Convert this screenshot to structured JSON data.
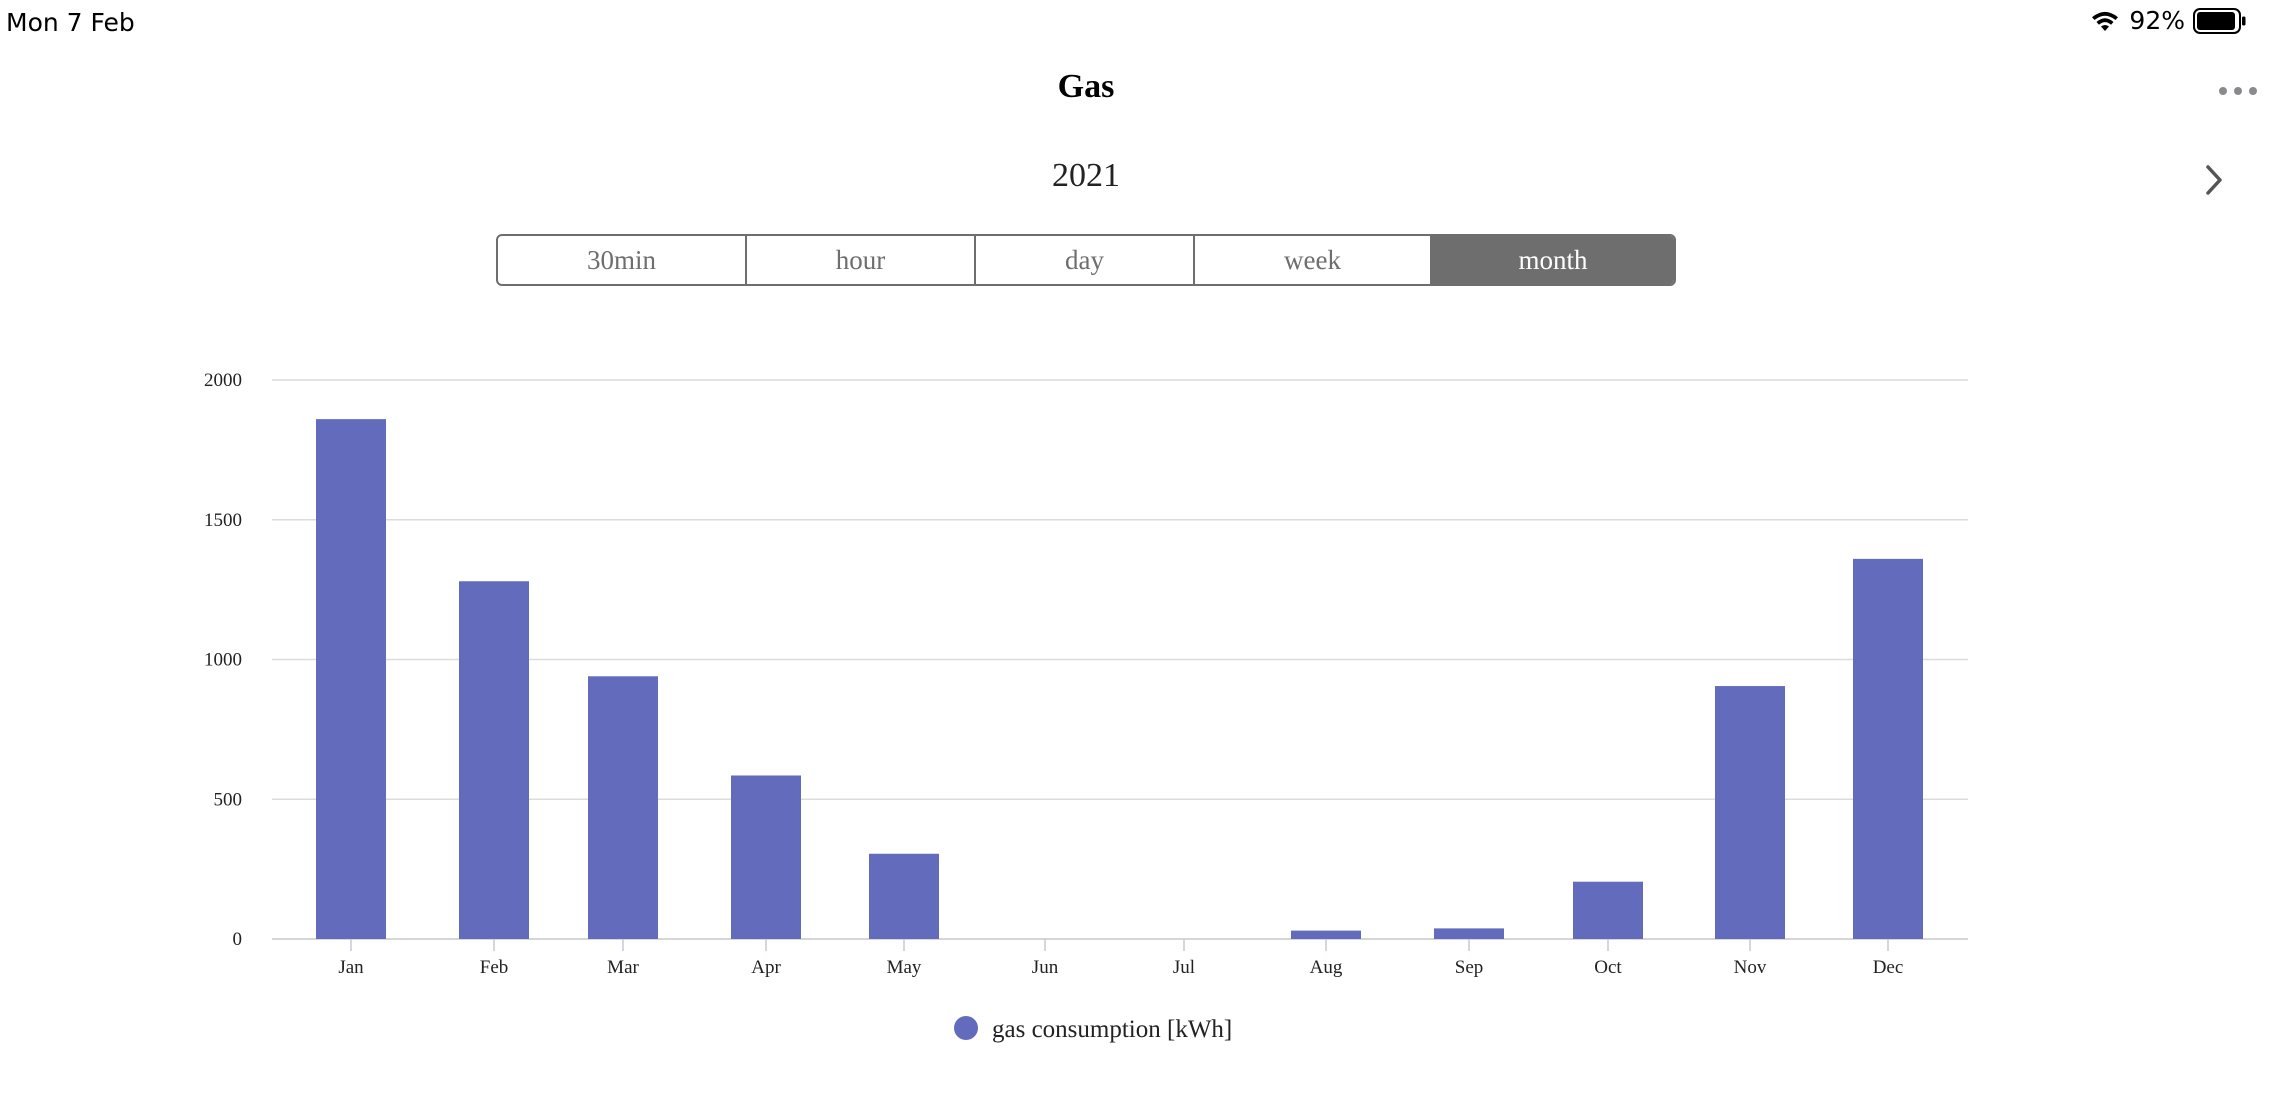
{
  "status_bar": {
    "time": "Mon 7 Feb",
    "battery": "92%"
  },
  "icons": {
    "wifi": "wifi-icon",
    "battery": "battery-icon",
    "more": "ellipsis-icon",
    "next": "chevron-right-icon"
  },
  "header": {
    "title": "Gas",
    "year": "2021"
  },
  "segments": [
    {
      "label": "30min",
      "active": false
    },
    {
      "label": "hour",
      "active": false
    },
    {
      "label": "day",
      "active": false
    },
    {
      "label": "week",
      "active": false
    },
    {
      "label": "month",
      "active": true
    }
  ],
  "colors": {
    "bar": "#636cbc",
    "segment_active": "#6e6e6e",
    "grid": "#dcdcdc"
  },
  "chart_data": {
    "type": "bar",
    "categories": [
      "Jan",
      "Feb",
      "Mar",
      "Apr",
      "May",
      "Jun",
      "Jul",
      "Aug",
      "Sep",
      "Oct",
      "Nov",
      "Dec"
    ],
    "series": [
      {
        "name": "gas consumption [kWh]",
        "values": [
          1860,
          1280,
          940,
          585,
          305,
          0,
          0,
          30,
          38,
          205,
          905,
          1360
        ]
      }
    ],
    "yticks": [
      0,
      500,
      1000,
      1500,
      2000
    ],
    "ylim": [
      0,
      2000
    ],
    "grid": true,
    "legend_position": "bottom-center"
  }
}
